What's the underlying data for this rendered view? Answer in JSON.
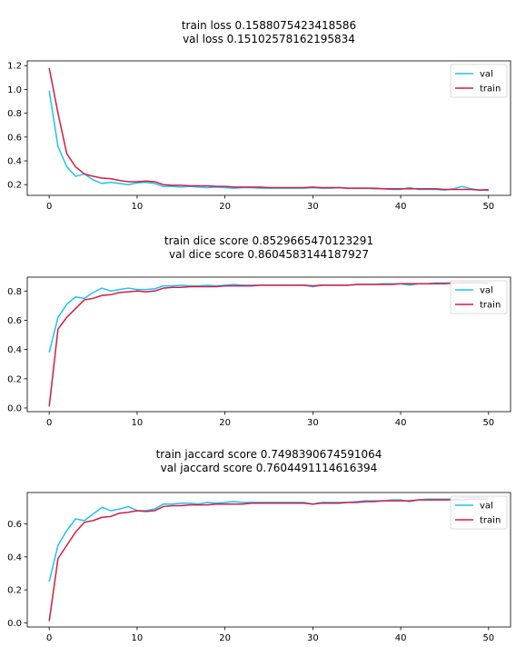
{
  "colors": {
    "val": "#1ec2f5",
    "train": "#d41c45"
  },
  "chart_data": [
    {
      "type": "line",
      "title": [
        "train loss 0.1588075423418586",
        "val loss 0.15102578162195834"
      ],
      "xlim": [
        -2.5,
        52.5
      ],
      "ylim": [
        0.11,
        1.24
      ],
      "xticks": [
        0,
        10,
        20,
        30,
        40,
        50
      ],
      "xtick_labels": [
        "0",
        "10",
        "20",
        "30",
        "40",
        "50"
      ],
      "yticks": [
        0.2,
        0.4,
        0.6,
        0.8,
        1.0,
        1.2
      ],
      "ytick_labels": [
        "0.2",
        "0.4",
        "0.6",
        "0.8",
        "1.0",
        "1.2"
      ],
      "legend_position": "upper right",
      "grid": false,
      "x": [
        0,
        1,
        2,
        3,
        4,
        5,
        6,
        7,
        8,
        9,
        10,
        11,
        12,
        13,
        14,
        15,
        16,
        17,
        18,
        19,
        20,
        21,
        22,
        23,
        24,
        25,
        26,
        27,
        28,
        29,
        30,
        31,
        32,
        33,
        34,
        35,
        36,
        37,
        38,
        39,
        40,
        41,
        42,
        43,
        44,
        45,
        46,
        47,
        48,
        49,
        50
      ],
      "series": [
        {
          "name": "val",
          "color_key": "val",
          "values": [
            0.99,
            0.52,
            0.35,
            0.27,
            0.29,
            0.24,
            0.21,
            0.22,
            0.21,
            0.2,
            0.215,
            0.22,
            0.21,
            0.185,
            0.185,
            0.18,
            0.185,
            0.18,
            0.175,
            0.18,
            0.175,
            0.17,
            0.175,
            0.175,
            0.17,
            0.17,
            0.17,
            0.17,
            0.17,
            0.17,
            0.175,
            0.17,
            0.17,
            0.175,
            0.17,
            0.17,
            0.17,
            0.165,
            0.165,
            0.16,
            0.16,
            0.175,
            0.16,
            0.16,
            0.16,
            0.155,
            0.165,
            0.185,
            0.165,
            0.155,
            0.151
          ]
        },
        {
          "name": "train",
          "color_key": "train",
          "values": [
            1.18,
            0.8,
            0.46,
            0.35,
            0.29,
            0.27,
            0.255,
            0.25,
            0.235,
            0.225,
            0.225,
            0.23,
            0.225,
            0.2,
            0.195,
            0.195,
            0.19,
            0.19,
            0.19,
            0.185,
            0.185,
            0.18,
            0.18,
            0.18,
            0.18,
            0.175,
            0.175,
            0.175,
            0.175,
            0.175,
            0.18,
            0.175,
            0.175,
            0.175,
            0.17,
            0.17,
            0.17,
            0.17,
            0.165,
            0.165,
            0.165,
            0.165,
            0.165,
            0.165,
            0.165,
            0.16,
            0.16,
            0.16,
            0.16,
            0.155,
            0.159
          ]
        }
      ]
    },
    {
      "type": "line",
      "title": [
        "train dice score 0.8529665470123291",
        "val dice score 0.8604583144187927"
      ],
      "xlim": [
        -2.5,
        52.5
      ],
      "ylim": [
        -0.025,
        0.895
      ],
      "xticks": [
        0,
        10,
        20,
        30,
        40,
        50
      ],
      "xtick_labels": [
        "0",
        "10",
        "20",
        "30",
        "40",
        "50"
      ],
      "yticks": [
        0.0,
        0.2,
        0.4,
        0.6,
        0.8
      ],
      "ytick_labels": [
        "0.0",
        "0.2",
        "0.4",
        "0.6",
        "0.8"
      ],
      "legend_position": "upper right",
      "grid": false,
      "x": [
        0,
        1,
        2,
        3,
        4,
        5,
        6,
        7,
        8,
        9,
        10,
        11,
        12,
        13,
        14,
        15,
        16,
        17,
        18,
        19,
        20,
        21,
        22,
        23,
        24,
        25,
        26,
        27,
        28,
        29,
        30,
        31,
        32,
        33,
        34,
        35,
        36,
        37,
        38,
        39,
        40,
        41,
        42,
        43,
        44,
        45,
        46,
        47,
        48,
        49,
        50
      ],
      "series": [
        {
          "name": "val",
          "color_key": "val",
          "values": [
            0.38,
            0.62,
            0.71,
            0.76,
            0.75,
            0.79,
            0.82,
            0.8,
            0.81,
            0.82,
            0.81,
            0.81,
            0.815,
            0.835,
            0.835,
            0.84,
            0.835,
            0.835,
            0.84,
            0.835,
            0.84,
            0.845,
            0.84,
            0.84,
            0.84,
            0.84,
            0.84,
            0.84,
            0.84,
            0.84,
            0.83,
            0.84,
            0.84,
            0.84,
            0.84,
            0.845,
            0.845,
            0.845,
            0.85,
            0.85,
            0.85,
            0.84,
            0.85,
            0.85,
            0.855,
            0.855,
            0.855,
            0.86,
            0.86,
            0.86,
            0.86
          ]
        },
        {
          "name": "train",
          "color_key": "train",
          "values": [
            0.01,
            0.54,
            0.62,
            0.68,
            0.74,
            0.75,
            0.77,
            0.775,
            0.79,
            0.795,
            0.8,
            0.795,
            0.8,
            0.82,
            0.825,
            0.825,
            0.83,
            0.83,
            0.83,
            0.83,
            0.835,
            0.835,
            0.835,
            0.835,
            0.84,
            0.84,
            0.84,
            0.84,
            0.84,
            0.84,
            0.835,
            0.84,
            0.84,
            0.84,
            0.84,
            0.845,
            0.845,
            0.845,
            0.845,
            0.845,
            0.85,
            0.85,
            0.85,
            0.85,
            0.85,
            0.85,
            0.855,
            0.855,
            0.855,
            0.855,
            0.853
          ]
        }
      ]
    },
    {
      "type": "line",
      "title": [
        "train jaccard score 0.7498390674591064",
        "val jaccard score 0.7604491114616394"
      ],
      "xlim": [
        -2.5,
        52.5
      ],
      "ylim": [
        -0.025,
        0.79
      ],
      "xticks": [
        0,
        10,
        20,
        30,
        40,
        50
      ],
      "xtick_labels": [
        "0",
        "10",
        "20",
        "30",
        "40",
        "50"
      ],
      "yticks": [
        0.0,
        0.2,
        0.4,
        0.6
      ],
      "ytick_labels": [
        "0.0",
        "0.2",
        "0.4",
        "0.6"
      ],
      "legend_position": "upper right",
      "grid": false,
      "x": [
        0,
        1,
        2,
        3,
        4,
        5,
        6,
        7,
        8,
        9,
        10,
        11,
        12,
        13,
        14,
        15,
        16,
        17,
        18,
        19,
        20,
        21,
        22,
        23,
        24,
        25,
        26,
        27,
        28,
        29,
        30,
        31,
        32,
        33,
        34,
        35,
        36,
        37,
        38,
        39,
        40,
        41,
        42,
        43,
        44,
        45,
        46,
        47,
        48,
        49,
        50
      ],
      "series": [
        {
          "name": "val",
          "color_key": "val",
          "values": [
            0.25,
            0.47,
            0.56,
            0.63,
            0.62,
            0.66,
            0.7,
            0.68,
            0.69,
            0.705,
            0.68,
            0.68,
            0.69,
            0.72,
            0.72,
            0.725,
            0.725,
            0.72,
            0.73,
            0.725,
            0.73,
            0.735,
            0.73,
            0.73,
            0.73,
            0.73,
            0.73,
            0.73,
            0.73,
            0.73,
            0.72,
            0.73,
            0.73,
            0.73,
            0.73,
            0.735,
            0.74,
            0.74,
            0.74,
            0.745,
            0.745,
            0.735,
            0.745,
            0.75,
            0.75,
            0.75,
            0.75,
            0.76,
            0.76,
            0.76,
            0.76
          ]
        },
        {
          "name": "train",
          "color_key": "train",
          "values": [
            0.01,
            0.39,
            0.47,
            0.55,
            0.61,
            0.62,
            0.64,
            0.645,
            0.665,
            0.67,
            0.68,
            0.675,
            0.68,
            0.705,
            0.71,
            0.71,
            0.715,
            0.715,
            0.715,
            0.72,
            0.72,
            0.72,
            0.72,
            0.725,
            0.725,
            0.725,
            0.725,
            0.725,
            0.725,
            0.725,
            0.72,
            0.725,
            0.725,
            0.725,
            0.73,
            0.73,
            0.735,
            0.735,
            0.74,
            0.74,
            0.74,
            0.74,
            0.745,
            0.745,
            0.745,
            0.745,
            0.745,
            0.745,
            0.75,
            0.75,
            0.7498
          ]
        }
      ]
    }
  ]
}
